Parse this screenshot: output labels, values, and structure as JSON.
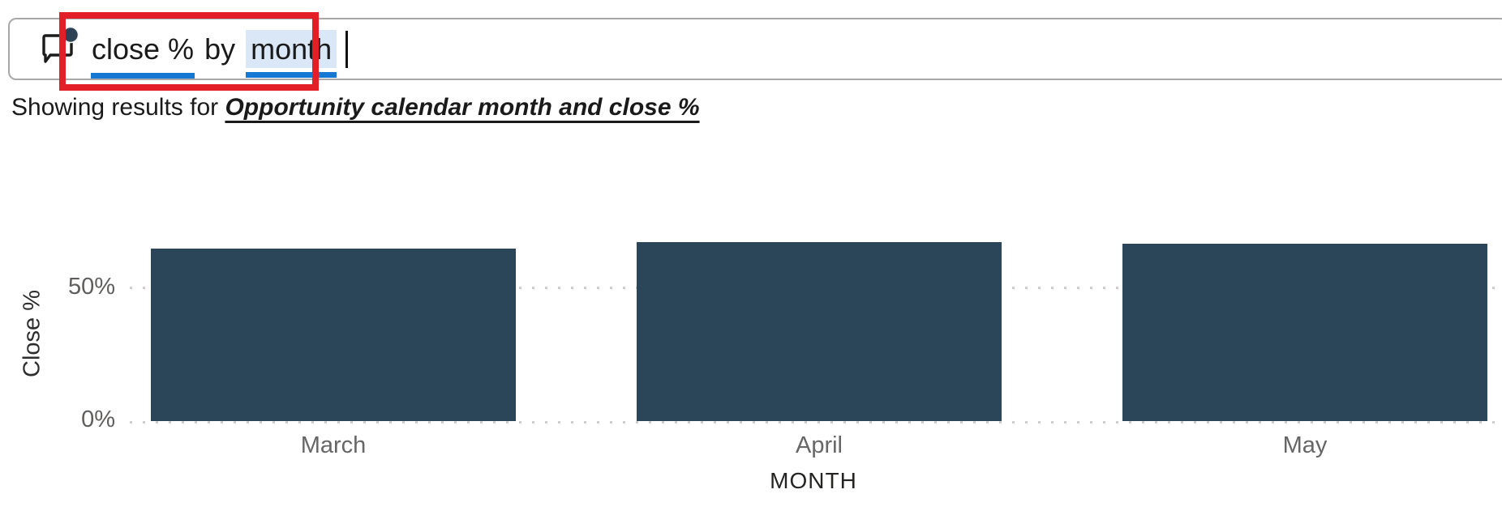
{
  "query_box": {
    "icon": "comment-bubble-icon",
    "full_query": "close % by month",
    "segments": [
      {
        "text": "close %",
        "underlined": true,
        "highlighted": false
      },
      {
        "text": "by",
        "underlined": false,
        "highlighted": false
      },
      {
        "text": "month",
        "underlined": true,
        "highlighted": true
      }
    ]
  },
  "annotation": {
    "type": "red-highlight-rectangle",
    "color": "#e41e26"
  },
  "results_line": {
    "prefix": "Showing results for ",
    "interpretation": "Opportunity calendar month and close %"
  },
  "chart_data": {
    "type": "bar",
    "categories": [
      "March",
      "April",
      "May"
    ],
    "values": [
      64.5,
      67,
      66.5
    ],
    "value_unit": "%",
    "title": "",
    "xlabel": "MONTH",
    "ylabel": "Close %",
    "yticks": [
      0,
      50
    ],
    "ytick_labels": [
      "0%",
      "50%"
    ],
    "ylim": [
      0,
      90
    ],
    "grid": "dotted horizontal lines at 0% and 50%",
    "legend": "none",
    "bar_color": "#2b4559"
  },
  "colors": {
    "term_underline_blue": "#1478d4",
    "term_highlight_blue": "#d9e7f6",
    "annotation_red": "#e41e26",
    "bar_fill": "#2b4559",
    "axis_text_gray": "#605e5c",
    "grid_gray": "#cdcdcd"
  }
}
